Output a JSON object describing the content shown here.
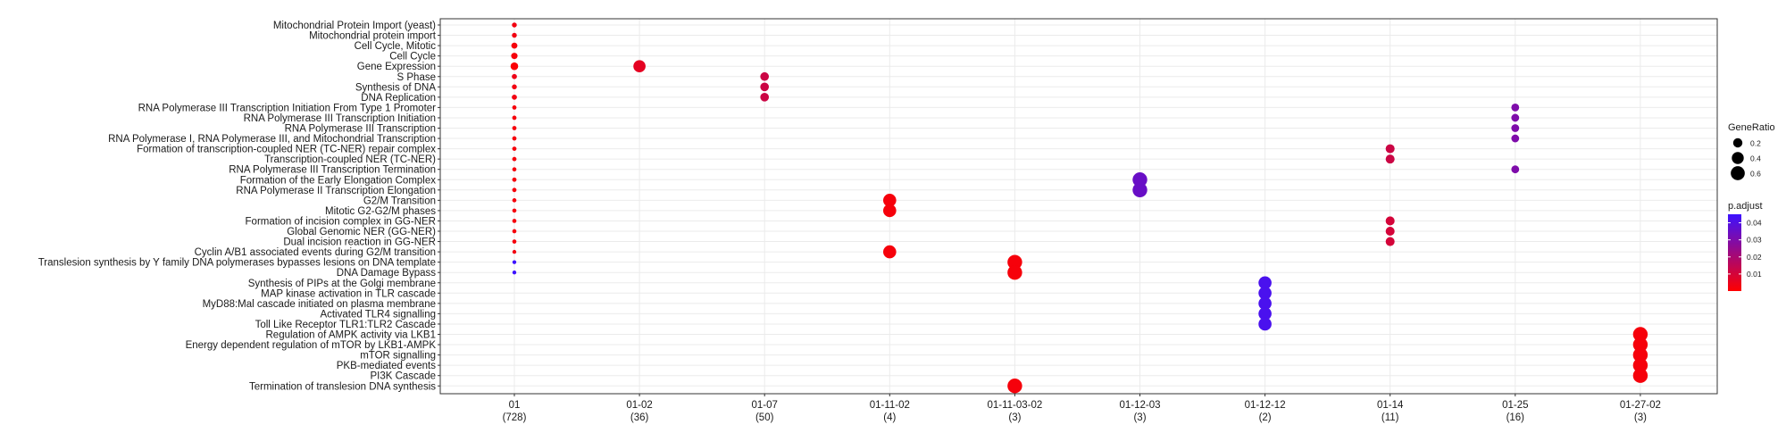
{
  "chart_data": {
    "type": "scatter",
    "title": "",
    "xlabel": "",
    "ylabel": "",
    "grid": true,
    "legend_position": "right",
    "categories_x": [
      "01",
      "01-02",
      "01-07",
      "01-11-02",
      "01-11-03-02",
      "01-12-03",
      "01-12-12",
      "01-14",
      "01-25",
      "01-27-02"
    ],
    "counts_x": [
      "(728)",
      "(36)",
      "(50)",
      "(4)",
      "(3)",
      "(3)",
      "(2)",
      "(11)",
      "(16)",
      "(3)"
    ],
    "categories_y": [
      "Mitochondrial Protein Import (yeast)",
      "Mitochondrial protein import",
      "Cell Cycle, Mitotic",
      "Cell Cycle",
      "Gene Expression",
      "S Phase",
      "Synthesis of DNA",
      "DNA Replication",
      "RNA Polymerase III Transcription Initiation From Type 1 Promoter",
      "RNA Polymerase III Transcription Initiation",
      "RNA Polymerase III Transcription",
      "RNA Polymerase I, RNA Polymerase III, and Mitochondrial Transcription",
      "Formation of transcription-coupled NER (TC-NER) repair complex",
      "Transcription-coupled NER (TC-NER)",
      "RNA Polymerase III Transcription Termination",
      "Formation of the Early Elongation Complex",
      "RNA Polymerase II Transcription Elongation",
      "G2/M Transition",
      "Mitotic G2-G2/M phases",
      "Formation of incision complex in GG-NER",
      "Global Genomic NER (GG-NER)",
      "Dual incision reaction in GG-NER",
      "Cyclin A/B1 associated events during G2/M transition",
      "Translesion synthesis by Y family DNA polymerases bypasses lesions on DNA template",
      "DNA Damage Bypass",
      "Synthesis of PIPs at the Golgi membrane",
      "MAP kinase activation in TLR cascade",
      "MyD88:Mal cascade initiated on plasma membrane",
      "Activated TLR4 signalling",
      "Toll Like Receptor TLR1:TLR2 Cascade",
      "Regulation of AMPK activity via LKB1",
      "Energy dependent regulation of mTOR by LKB1-AMPK",
      "mTOR signalling",
      "PKB-mediated events",
      "PI3K Cascade",
      "Termination of translesion DNA synthesis"
    ],
    "points": [
      {
        "x": 0,
        "y": 0,
        "gene_ratio": 0.02,
        "p_adjust": 0.003
      },
      {
        "x": 0,
        "y": 1,
        "gene_ratio": 0.02,
        "p_adjust": 0.003
      },
      {
        "x": 0,
        "y": 2,
        "gene_ratio": 0.05,
        "p_adjust": 0.002
      },
      {
        "x": 0,
        "y": 3,
        "gene_ratio": 0.06,
        "p_adjust": 0.002
      },
      {
        "x": 0,
        "y": 4,
        "gene_ratio": 0.11,
        "p_adjust": 0.001
      },
      {
        "x": 0,
        "y": 5,
        "gene_ratio": 0.025,
        "p_adjust": 0.004
      },
      {
        "x": 0,
        "y": 6,
        "gene_ratio": 0.02,
        "p_adjust": 0.003
      },
      {
        "x": 0,
        "y": 7,
        "gene_ratio": 0.025,
        "p_adjust": 0.003
      },
      {
        "x": 0,
        "y": 8,
        "gene_ratio": 0.01,
        "p_adjust": 0.002
      },
      {
        "x": 0,
        "y": 9,
        "gene_ratio": 0.01,
        "p_adjust": 0.002
      },
      {
        "x": 0,
        "y": 10,
        "gene_ratio": 0.01,
        "p_adjust": 0.002
      },
      {
        "x": 0,
        "y": 11,
        "gene_ratio": 0.01,
        "p_adjust": 0.002
      },
      {
        "x": 0,
        "y": 12,
        "gene_ratio": 0.01,
        "p_adjust": 0.002
      },
      {
        "x": 0,
        "y": 13,
        "gene_ratio": 0.01,
        "p_adjust": 0.002
      },
      {
        "x": 0,
        "y": 14,
        "gene_ratio": 0.008,
        "p_adjust": 0.002
      },
      {
        "x": 0,
        "y": 15,
        "gene_ratio": 0.01,
        "p_adjust": 0.002
      },
      {
        "x": 0,
        "y": 16,
        "gene_ratio": 0.01,
        "p_adjust": 0.002
      },
      {
        "x": 0,
        "y": 17,
        "gene_ratio": 0.008,
        "p_adjust": 0.002
      },
      {
        "x": 0,
        "y": 18,
        "gene_ratio": 0.008,
        "p_adjust": 0.002
      },
      {
        "x": 0,
        "y": 19,
        "gene_ratio": 0.008,
        "p_adjust": 0.002
      },
      {
        "x": 0,
        "y": 20,
        "gene_ratio": 0.008,
        "p_adjust": 0.002
      },
      {
        "x": 0,
        "y": 21,
        "gene_ratio": 0.008,
        "p_adjust": 0.002
      },
      {
        "x": 0,
        "y": 22,
        "gene_ratio": 0.005,
        "p_adjust": 0.003
      },
      {
        "x": 0,
        "y": 23,
        "gene_ratio": 0.005,
        "p_adjust": 0.045
      },
      {
        "x": 0,
        "y": 24,
        "gene_ratio": 0.005,
        "p_adjust": 0.045
      },
      {
        "x": 1,
        "y": 4,
        "gene_ratio": 0.42,
        "p_adjust": 0.006
      },
      {
        "x": 2,
        "y": 5,
        "gene_ratio": 0.16,
        "p_adjust": 0.012
      },
      {
        "x": 2,
        "y": 6,
        "gene_ratio": 0.16,
        "p_adjust": 0.012
      },
      {
        "x": 2,
        "y": 7,
        "gene_ratio": 0.16,
        "p_adjust": 0.012
      },
      {
        "x": 3,
        "y": 17,
        "gene_ratio": 0.5,
        "p_adjust": 0.002
      },
      {
        "x": 3,
        "y": 18,
        "gene_ratio": 0.5,
        "p_adjust": 0.002
      },
      {
        "x": 3,
        "y": 22,
        "gene_ratio": 0.5,
        "p_adjust": 0.002
      },
      {
        "x": 4,
        "y": 23,
        "gene_ratio": 0.67,
        "p_adjust": 0.002
      },
      {
        "x": 4,
        "y": 24,
        "gene_ratio": 0.67,
        "p_adjust": 0.002
      },
      {
        "x": 4,
        "y": 35,
        "gene_ratio": 0.67,
        "p_adjust": 0.002
      },
      {
        "x": 5,
        "y": 15,
        "gene_ratio": 0.67,
        "p_adjust": 0.035
      },
      {
        "x": 5,
        "y": 16,
        "gene_ratio": 0.67,
        "p_adjust": 0.035
      },
      {
        "x": 6,
        "y": 25,
        "gene_ratio": 0.5,
        "p_adjust": 0.042
      },
      {
        "x": 6,
        "y": 26,
        "gene_ratio": 0.5,
        "p_adjust": 0.042
      },
      {
        "x": 6,
        "y": 27,
        "gene_ratio": 0.5,
        "p_adjust": 0.042
      },
      {
        "x": 6,
        "y": 28,
        "gene_ratio": 0.5,
        "p_adjust": 0.042
      },
      {
        "x": 6,
        "y": 29,
        "gene_ratio": 0.5,
        "p_adjust": 0.042
      },
      {
        "x": 7,
        "y": 12,
        "gene_ratio": 0.18,
        "p_adjust": 0.012
      },
      {
        "x": 7,
        "y": 13,
        "gene_ratio": 0.18,
        "p_adjust": 0.012
      },
      {
        "x": 7,
        "y": 19,
        "gene_ratio": 0.18,
        "p_adjust": 0.01
      },
      {
        "x": 7,
        "y": 20,
        "gene_ratio": 0.18,
        "p_adjust": 0.01
      },
      {
        "x": 7,
        "y": 21,
        "gene_ratio": 0.18,
        "p_adjust": 0.01
      },
      {
        "x": 8,
        "y": 8,
        "gene_ratio": 0.12,
        "p_adjust": 0.03
      },
      {
        "x": 8,
        "y": 9,
        "gene_ratio": 0.12,
        "p_adjust": 0.03
      },
      {
        "x": 8,
        "y": 10,
        "gene_ratio": 0.12,
        "p_adjust": 0.03
      },
      {
        "x": 8,
        "y": 11,
        "gene_ratio": 0.12,
        "p_adjust": 0.03
      },
      {
        "x": 8,
        "y": 14,
        "gene_ratio": 0.12,
        "p_adjust": 0.03
      },
      {
        "x": 9,
        "y": 30,
        "gene_ratio": 0.67,
        "p_adjust": 0.002
      },
      {
        "x": 9,
        "y": 31,
        "gene_ratio": 0.67,
        "p_adjust": 0.002
      },
      {
        "x": 9,
        "y": 32,
        "gene_ratio": 0.67,
        "p_adjust": 0.002
      },
      {
        "x": 9,
        "y": 33,
        "gene_ratio": 0.67,
        "p_adjust": 0.002
      },
      {
        "x": 9,
        "y": 34,
        "gene_ratio": 0.67,
        "p_adjust": 0.002
      }
    ],
    "size_legend": {
      "title": "GeneRatio",
      "breaks": [
        0.2,
        0.4,
        0.6
      ],
      "labels": [
        "0.2",
        "0.4",
        "0.6"
      ],
      "range": [
        0,
        0.67
      ]
    },
    "color_legend": {
      "title": "p.adjust",
      "breaks": [
        0.01,
        0.02,
        0.03,
        0.04
      ],
      "labels": [
        "0.01",
        "0.02",
        "0.03",
        "0.04"
      ],
      "range": [
        0,
        0.045
      ],
      "low_color": "#ff0000",
      "high_color": "#3d12ff"
    }
  }
}
